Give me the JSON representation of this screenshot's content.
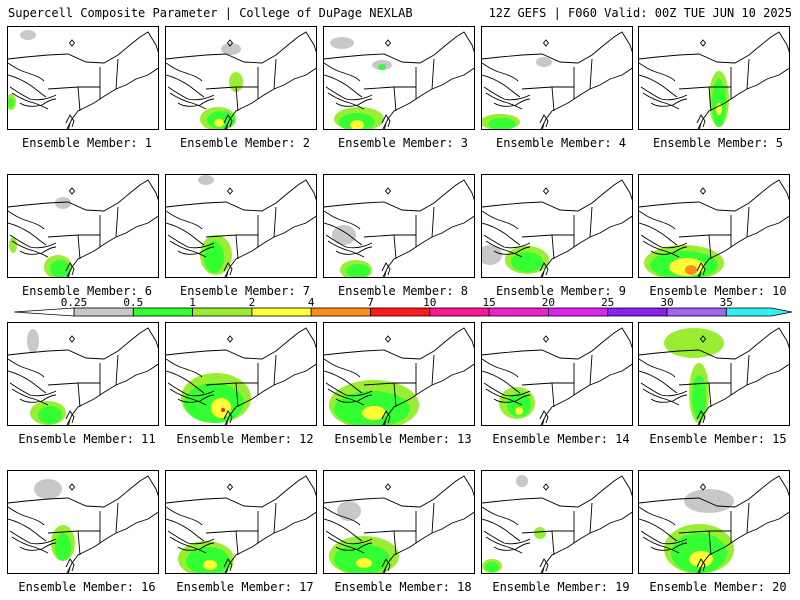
{
  "header": {
    "left_title": "Supercell Composite Parameter | College of DuPage NEXLAB",
    "right_title": "12Z GEFS | F060 Valid: 00Z TUE JUN 10 2025"
  },
  "members": [
    {
      "label": "Ensemble Member: 1",
      "blobs": [
        [
          "g",
          20,
          8,
          8,
          5
        ],
        [
          "c",
          3,
          75,
          5,
          8
        ],
        [
          "n",
          3,
          76,
          3,
          5
        ]
      ]
    },
    {
      "label": "Ensemble Member: 2",
      "blobs": [
        [
          "g",
          65,
          22,
          10,
          6
        ],
        [
          "c",
          70,
          55,
          7,
          10
        ],
        [
          "c",
          52,
          92,
          18,
          12
        ],
        [
          "n",
          55,
          93,
          14,
          9
        ],
        [
          "y",
          53,
          96,
          5,
          4
        ]
      ]
    },
    {
      "label": "Ensemble Member: 3",
      "blobs": [
        [
          "g",
          18,
          16,
          12,
          6
        ],
        [
          "g",
          58,
          38,
          10,
          5
        ],
        [
          "n",
          58,
          40,
          4,
          3
        ],
        [
          "c",
          35,
          92,
          25,
          12
        ],
        [
          "n",
          33,
          95,
          18,
          9
        ],
        [
          "y",
          33,
          98,
          7,
          5
        ]
      ]
    },
    {
      "label": "Ensemble Member: 4",
      "blobs": [
        [
          "g",
          62,
          35,
          8,
          5
        ],
        [
          "c",
          18,
          95,
          20,
          8
        ],
        [
          "n",
          20,
          97,
          14,
          6
        ]
      ]
    },
    {
      "label": "Ensemble Member: 5",
      "blobs": [
        [
          "c",
          80,
          72,
          10,
          28
        ],
        [
          "n",
          80,
          76,
          7,
          24
        ],
        [
          "y",
          80,
          82,
          3,
          6
        ]
      ]
    },
    {
      "label": "Ensemble Member: 6",
      "blobs": [
        [
          "g",
          55,
          28,
          8,
          6
        ],
        [
          "c",
          5,
          70,
          4,
          8
        ],
        [
          "c",
          50,
          92,
          14,
          12
        ],
        [
          "n",
          52,
          94,
          10,
          9
        ]
      ]
    },
    {
      "label": "Ensemble Member: 7",
      "blobs": [
        [
          "g",
          40,
          5,
          8,
          5
        ],
        [
          "c",
          50,
          80,
          16,
          20
        ],
        [
          "n",
          48,
          82,
          10,
          16
        ]
      ]
    },
    {
      "label": "Ensemble Member: 8",
      "blobs": [
        [
          "g",
          20,
          60,
          12,
          10
        ],
        [
          "c",
          32,
          95,
          16,
          10
        ],
        [
          "n",
          34,
          96,
          12,
          7
        ]
      ]
    },
    {
      "label": "Ensemble Member: 9",
      "blobs": [
        [
          "g",
          8,
          80,
          12,
          10
        ],
        [
          "c",
          45,
          85,
          22,
          14
        ],
        [
          "n",
          45,
          87,
          16,
          10
        ]
      ]
    },
    {
      "label": "Ensemble Member: 10",
      "blobs": [
        [
          "c",
          45,
          88,
          40,
          18
        ],
        [
          "n",
          45,
          90,
          34,
          14
        ],
        [
          "y",
          48,
          92,
          18,
          9
        ],
        [
          "o",
          52,
          95,
          6,
          5
        ]
      ]
    },
    {
      "label": "Ensemble Member: 11",
      "blobs": [
        [
          "g",
          25,
          18,
          6,
          12
        ],
        [
          "c",
          40,
          90,
          18,
          12
        ],
        [
          "n",
          42,
          92,
          12,
          9
        ]
      ]
    },
    {
      "label": "Ensemble Member: 12",
      "blobs": [
        [
          "c",
          50,
          75,
          35,
          25
        ],
        [
          "n",
          48,
          80,
          30,
          20
        ],
        [
          "y",
          55,
          85,
          10,
          10
        ],
        [
          "r",
          57,
          87,
          2,
          2
        ]
      ]
    },
    {
      "label": "Ensemble Member: 13",
      "blobs": [
        [
          "c",
          50,
          82,
          45,
          25
        ],
        [
          "n",
          48,
          86,
          38,
          18
        ],
        [
          "y",
          50,
          90,
          12,
          7
        ]
      ]
    },
    {
      "label": "Ensemble Member: 14",
      "blobs": [
        [
          "c",
          35,
          80,
          18,
          16
        ],
        [
          "n",
          37,
          82,
          12,
          12
        ],
        [
          "y",
          37,
          88,
          4,
          4
        ]
      ]
    },
    {
      "label": "Ensemble Member: 15",
      "blobs": [
        [
          "c",
          55,
          20,
          30,
          15
        ],
        [
          "c",
          60,
          70,
          10,
          30
        ],
        [
          "n",
          60,
          74,
          7,
          22
        ]
      ]
    },
    {
      "label": "Ensemble Member: 16",
      "blobs": [
        [
          "g",
          40,
          18,
          14,
          10
        ],
        [
          "c",
          55,
          72,
          12,
          18
        ],
        [
          "n",
          55,
          76,
          8,
          14
        ]
      ]
    },
    {
      "label": "Ensemble Member: 17",
      "blobs": [
        [
          "c",
          40,
          88,
          28,
          18
        ],
        [
          "n",
          42,
          90,
          22,
          14
        ],
        [
          "y",
          44,
          94,
          7,
          5
        ]
      ]
    },
    {
      "label": "Ensemble Member: 18",
      "blobs": [
        [
          "g",
          25,
          40,
          12,
          10
        ],
        [
          "c",
          40,
          85,
          35,
          20
        ],
        [
          "n",
          38,
          88,
          28,
          15
        ],
        [
          "y",
          40,
          92,
          8,
          5
        ]
      ]
    },
    {
      "label": "Ensemble Member: 19",
      "blobs": [
        [
          "g",
          40,
          10,
          6,
          6
        ],
        [
          "c",
          58,
          62,
          6,
          6
        ],
        [
          "c",
          10,
          95,
          10,
          7
        ],
        [
          "n",
          10,
          96,
          7,
          5
        ]
      ]
    },
    {
      "label": "Ensemble Member: 20",
      "blobs": [
        [
          "g",
          70,
          30,
          25,
          12
        ],
        [
          "c",
          60,
          78,
          35,
          25
        ],
        [
          "n",
          60,
          82,
          28,
          20
        ],
        [
          "y",
          62,
          88,
          12,
          8
        ]
      ]
    }
  ],
  "colorbar": {
    "labels": [
      "0.25",
      "0.5",
      "1",
      "2",
      "4",
      "7",
      "10",
      "15",
      "20",
      "25",
      "30",
      "35"
    ],
    "colors": [
      "#c8c8c8",
      "#33ff33",
      "#99ee33",
      "#ffff33",
      "#ff8c1a",
      "#ff1a1a",
      "#ff1493",
      "#ee22cc",
      "#dd22ee",
      "#8b22ee",
      "#a066ee",
      "#33eeee"
    ]
  },
  "palette": {
    "g": "#c8c8c8",
    "n": "#33ff33",
    "c": "#99ee33",
    "y": "#ffff33",
    "o": "#ff8c1a",
    "r": "#ff1a1a"
  }
}
